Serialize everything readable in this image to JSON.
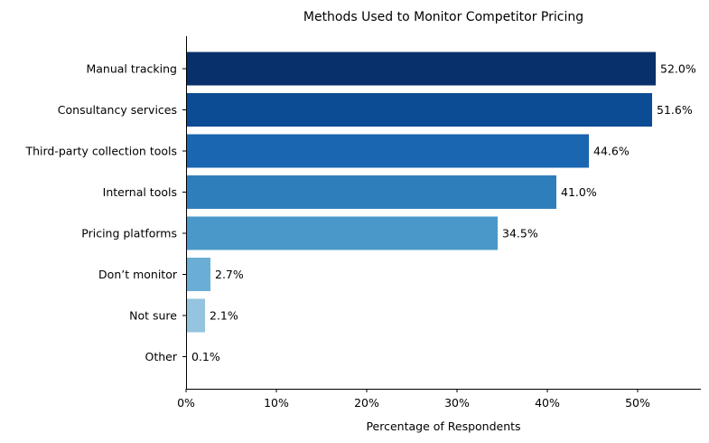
{
  "chart_data": {
    "type": "bar",
    "orientation": "horizontal",
    "title": "Methods Used to Monitor Competitor Pricing",
    "xlabel": "Percentage of Respondents",
    "ylabel": "",
    "categories": [
      "Manual tracking",
      "Consultancy services",
      "Third-party collection tools",
      "Internal tools",
      "Pricing platforms",
      "Don’t monitor",
      "Not sure",
      "Other"
    ],
    "values": [
      52.0,
      51.6,
      44.6,
      41.0,
      34.5,
      2.7,
      2.1,
      0.1
    ],
    "value_labels": [
      "52.0%",
      "51.6%",
      "44.6%",
      "41.0%",
      "34.5%",
      "2.7%",
      "2.1%",
      "0.1%"
    ],
    "bar_colors": [
      "#08306b",
      "#0b4c94",
      "#1a66b0",
      "#2f7ebc",
      "#4a98c9",
      "#6aaed6",
      "#94c4df",
      "#c6dbef"
    ],
    "xlim": [
      0,
      57
    ],
    "xticks": [
      0,
      10,
      20,
      30,
      40,
      50
    ],
    "xtick_labels": [
      "0%",
      "10%",
      "20%",
      "30%",
      "40%",
      "50%"
    ],
    "grid": false,
    "legend": "none"
  }
}
